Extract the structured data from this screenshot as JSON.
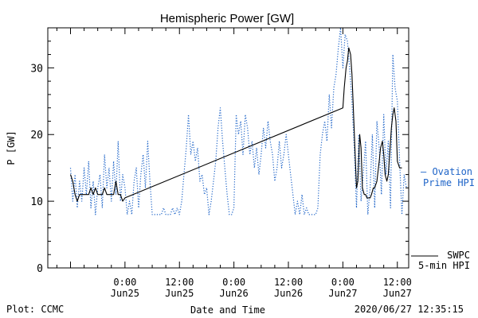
{
  "chart_data": {
    "type": "line",
    "title": "Hemispheric Power [GW]",
    "xlabel": "Date and Time",
    "ylabel": "P [GW]",
    "ylim": [
      0,
      36
    ],
    "xlim": [
      -17,
      62.5
    ],
    "x_unit": "hours relative to 2020-06-25 0:00 UT",
    "yticks": [
      0,
      10,
      20,
      30
    ],
    "xticks": [
      {
        "x": 0,
        "time": "0:00",
        "date": "Jun25"
      },
      {
        "x": 12,
        "time": "12:00",
        "date": "Jun25"
      },
      {
        "x": 24,
        "time": "0:00",
        "date": "Jun26"
      },
      {
        "x": 36,
        "time": "12:00",
        "date": "Jun26"
      },
      {
        "x": 48,
        "time": "0:00",
        "date": "Jun27"
      },
      {
        "x": 60,
        "time": "12:00",
        "date": "Jun27"
      }
    ],
    "grid": false,
    "series": [
      {
        "name": "Ovation Prime HPI",
        "legend_lines": [
          "— Ovation",
          "Prime HPI"
        ],
        "style": "dotted",
        "color": "#1e64c8",
        "points": [
          [
            -12,
            15
          ],
          [
            -11.5,
            10
          ],
          [
            -11,
            14
          ],
          [
            -10.5,
            9
          ],
          [
            -10,
            13
          ],
          [
            -9.5,
            10
          ],
          [
            -9,
            15
          ],
          [
            -8.5,
            11
          ],
          [
            -8,
            16
          ],
          [
            -7.5,
            9
          ],
          [
            -7,
            13
          ],
          [
            -6.5,
            8
          ],
          [
            -6,
            12
          ],
          [
            -5.5,
            14
          ],
          [
            -5,
            9
          ],
          [
            -4.5,
            17
          ],
          [
            -4,
            12
          ],
          [
            -3.5,
            15
          ],
          [
            -3,
            10
          ],
          [
            -2.5,
            16
          ],
          [
            -2,
            11
          ],
          [
            -1.5,
            19
          ],
          [
            -1,
            10
          ],
          [
            -0.5,
            14
          ],
          [
            0,
            12
          ],
          [
            0.5,
            8
          ],
          [
            1,
            10
          ],
          [
            1.5,
            8
          ],
          [
            2,
            13
          ],
          [
            2.5,
            15
          ],
          [
            3,
            9
          ],
          [
            3.5,
            14
          ],
          [
            4,
            17
          ],
          [
            4.5,
            12
          ],
          [
            5,
            19
          ],
          [
            5.5,
            13
          ],
          [
            6,
            8
          ],
          [
            6.5,
            8
          ],
          [
            7,
            8
          ],
          [
            7.5,
            8
          ],
          [
            8,
            8
          ],
          [
            8.5,
            9
          ],
          [
            9,
            8
          ],
          [
            9.5,
            8
          ],
          [
            10,
            8
          ],
          [
            10.5,
            9
          ],
          [
            11,
            8
          ],
          [
            11.5,
            9
          ],
          [
            12,
            8
          ],
          [
            12.5,
            10
          ],
          [
            13,
            14
          ],
          [
            13.5,
            18
          ],
          [
            14,
            23
          ],
          [
            14.5,
            17
          ],
          [
            15,
            19
          ],
          [
            15.5,
            16
          ],
          [
            16,
            18
          ],
          [
            16.5,
            13
          ],
          [
            17,
            14
          ],
          [
            17.5,
            11
          ],
          [
            18,
            12
          ],
          [
            18.5,
            8
          ],
          [
            19,
            10
          ],
          [
            19.5,
            13
          ],
          [
            20,
            16
          ],
          [
            20.5,
            21
          ],
          [
            21,
            24
          ],
          [
            21.5,
            19
          ],
          [
            22,
            15
          ],
          [
            22.5,
            11
          ],
          [
            23,
            8
          ],
          [
            23.5,
            8
          ],
          [
            24,
            9
          ],
          [
            24.5,
            23
          ],
          [
            25,
            20
          ],
          [
            25.5,
            22
          ],
          [
            26,
            17
          ],
          [
            26.5,
            23
          ],
          [
            27,
            21
          ],
          [
            27.5,
            17
          ],
          [
            28,
            19
          ],
          [
            28.5,
            15
          ],
          [
            29,
            18
          ],
          [
            29.5,
            14
          ],
          [
            30,
            17
          ],
          [
            30.5,
            21
          ],
          [
            31,
            18
          ],
          [
            31.5,
            22
          ],
          [
            32,
            19
          ],
          [
            32.5,
            17
          ],
          [
            33,
            13
          ],
          [
            33.5,
            15
          ],
          [
            34,
            19
          ],
          [
            34.5,
            15
          ],
          [
            35,
            17
          ],
          [
            35.5,
            20
          ],
          [
            36,
            17
          ],
          [
            36.5,
            14
          ],
          [
            37,
            11
          ],
          [
            37.5,
            8
          ],
          [
            38,
            10
          ],
          [
            38.5,
            8
          ],
          [
            39,
            11
          ],
          [
            39.5,
            8
          ],
          [
            40,
            9
          ],
          [
            40.5,
            8
          ],
          [
            41,
            8
          ],
          [
            41.5,
            8
          ],
          [
            42,
            8
          ],
          [
            42.5,
            9
          ],
          [
            43,
            17
          ],
          [
            43.5,
            20
          ],
          [
            44,
            22
          ],
          [
            44.5,
            19
          ],
          [
            45,
            26
          ],
          [
            45.5,
            21
          ],
          [
            46,
            27
          ],
          [
            46.5,
            29
          ],
          [
            47,
            33
          ],
          [
            47.5,
            36
          ],
          [
            48,
            30
          ],
          [
            48.5,
            35
          ],
          [
            49,
            34
          ],
          [
            49.5,
            30
          ],
          [
            50,
            25
          ],
          [
            50.5,
            18
          ],
          [
            51,
            9
          ],
          [
            51.5,
            20
          ],
          [
            52,
            10
          ],
          [
            52.5,
            14
          ],
          [
            53,
            19
          ],
          [
            53.5,
            8
          ],
          [
            54,
            12
          ],
          [
            54.5,
            20
          ],
          [
            55,
            9
          ],
          [
            55.5,
            22
          ],
          [
            56,
            18
          ],
          [
            56.5,
            11
          ],
          [
            57,
            23
          ],
          [
            57.5,
            14
          ],
          [
            58,
            19
          ],
          [
            58.5,
            9
          ],
          [
            59,
            32
          ],
          [
            59.5,
            27
          ],
          [
            60,
            25
          ],
          [
            60.5,
            16
          ],
          [
            61,
            8
          ],
          [
            61.5,
            14
          ],
          [
            62,
            12
          ]
        ]
      },
      {
        "name": "SWPC 5-min HPI",
        "legend_lines": [
          "SWPC",
          "5-min HPI"
        ],
        "style": "solid",
        "color": "#000000",
        "points": [
          [
            -12,
            14
          ],
          [
            -11.5,
            13
          ],
          [
            -11,
            11
          ],
          [
            -10.5,
            10
          ],
          [
            -10,
            11
          ],
          [
            -9,
            11
          ],
          [
            -8,
            11
          ],
          [
            -7.5,
            12
          ],
          [
            -7,
            11
          ],
          [
            -6.5,
            12
          ],
          [
            -6,
            11
          ],
          [
            -5,
            11
          ],
          [
            -4.5,
            12
          ],
          [
            -4,
            11
          ],
          [
            -3,
            11
          ],
          [
            -2.5,
            11
          ],
          [
            -2,
            13
          ],
          [
            -1.5,
            11
          ],
          [
            -1,
            11
          ],
          [
            -0.5,
            10
          ],
          [
            0,
            10.5
          ],
          [
            48,
            24
          ],
          [
            48.3,
            27
          ],
          [
            48.7,
            30
          ],
          [
            49,
            31
          ],
          [
            49.3,
            33
          ],
          [
            49.7,
            32
          ],
          [
            50,
            29
          ],
          [
            50.3,
            24
          ],
          [
            50.7,
            17
          ],
          [
            51,
            12
          ],
          [
            51.3,
            13
          ],
          [
            51.7,
            20
          ],
          [
            52,
            18
          ],
          [
            52.3,
            12
          ],
          [
            52.7,
            11
          ],
          [
            53,
            11
          ],
          [
            53.3,
            10.5
          ],
          [
            53.7,
            10.5
          ],
          [
            54,
            10.5
          ],
          [
            54.3,
            11
          ],
          [
            54.7,
            12
          ],
          [
            55,
            12
          ],
          [
            55.5,
            13
          ],
          [
            56,
            16
          ],
          [
            56.3,
            18
          ],
          [
            56.7,
            19
          ],
          [
            57,
            17
          ],
          [
            57.3,
            14
          ],
          [
            57.7,
            13
          ],
          [
            58,
            14
          ],
          [
            58.3,
            17
          ],
          [
            58.7,
            21
          ],
          [
            59,
            23
          ],
          [
            59.3,
            24
          ],
          [
            59.7,
            22
          ],
          [
            60,
            16
          ],
          [
            60.5,
            15
          ],
          [
            61,
            15
          ]
        ]
      }
    ]
  },
  "footer": {
    "plot_credit": "Plot: CCMC",
    "timestamp": "2020/06/27 12:35:15"
  },
  "colors": {
    "ovation": "#1e64c8",
    "swpc": "#000000"
  }
}
